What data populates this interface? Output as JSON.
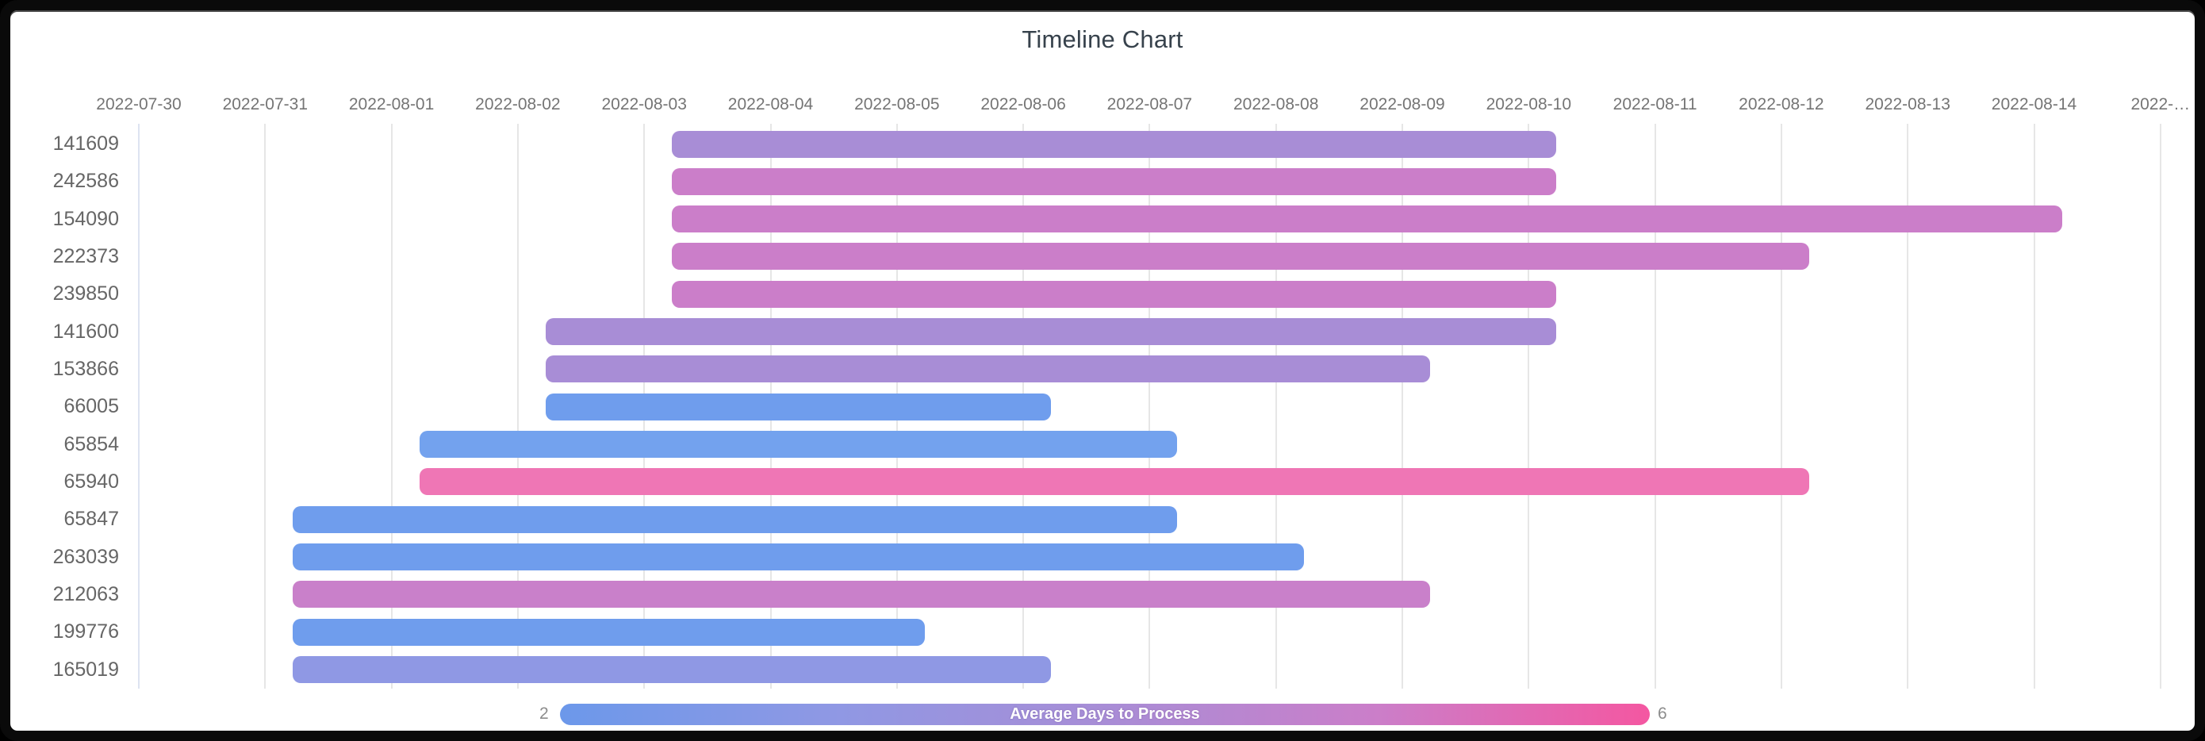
{
  "page": {
    "frame_color": "#0a0a0a",
    "panel_background": "#ffffff"
  },
  "chart": {
    "title": "Timeline Chart",
    "legend": {
      "label": "Average Days to Process",
      "min_label": "2",
      "max_label": "6",
      "gradient": [
        "#6c98ea",
        "#8f98e4",
        "#a88dd6",
        "#cb7ec9",
        "#f457a1"
      ]
    }
  },
  "chart_data": {
    "type": "bar",
    "variant": "timeline-gantt",
    "title": "Timeline Chart",
    "orientation": "horizontal",
    "x_axis": {
      "kind": "date",
      "range_start": "2022-07-30",
      "range_end": "2022-08-15",
      "tick_labels": [
        "2022-07-30",
        "2022-07-31",
        "2022-08-01",
        "2022-08-02",
        "2022-08-03",
        "2022-08-04",
        "2022-08-05",
        "2022-08-06",
        "2022-08-07",
        "2022-08-08",
        "2022-08-09",
        "2022-08-10",
        "2022-08-11",
        "2022-08-12",
        "2022-08-13",
        "2022-08-14",
        "2022-…"
      ],
      "grid": true
    },
    "rows": [
      {
        "label": "141609",
        "start": "2022-08-03",
        "end": "2022-08-10",
        "duration_days": 7,
        "color": "#a88dd6",
        "avg_days_to_process_approx": 4
      },
      {
        "label": "242586",
        "start": "2022-08-03",
        "end": "2022-08-10",
        "duration_days": 7,
        "color": "#cb7ec9",
        "avg_days_to_process_approx": 5
      },
      {
        "label": "154090",
        "start": "2022-08-03",
        "end": "2022-08-14",
        "duration_days": 11,
        "color": "#cb7ec9",
        "avg_days_to_process_approx": 5
      },
      {
        "label": "222373",
        "start": "2022-08-03",
        "end": "2022-08-12",
        "duration_days": 9,
        "color": "#cb7ec9",
        "avg_days_to_process_approx": 5
      },
      {
        "label": "239850",
        "start": "2022-08-03",
        "end": "2022-08-10",
        "duration_days": 7,
        "color": "#cb7ec9",
        "avg_days_to_process_approx": 5
      },
      {
        "label": "141600",
        "start": "2022-08-02",
        "end": "2022-08-10",
        "duration_days": 8,
        "color": "#a88dd6",
        "avg_days_to_process_approx": 4
      },
      {
        "label": "153866",
        "start": "2022-08-02",
        "end": "2022-08-09",
        "duration_days": 7,
        "color": "#a88dd6",
        "avg_days_to_process_approx": 4
      },
      {
        "label": "66005",
        "start": "2022-08-02",
        "end": "2022-08-06",
        "duration_days": 4,
        "color": "#6f9ded",
        "avg_days_to_process_approx": 2
      },
      {
        "label": "65854",
        "start": "2022-08-01",
        "end": "2022-08-07",
        "duration_days": 6,
        "color": "#73a2ee",
        "avg_days_to_process_approx": 2
      },
      {
        "label": "65940",
        "start": "2022-08-01",
        "end": "2022-08-12",
        "duration_days": 11,
        "color": "#ef76b5",
        "avg_days_to_process_approx": 6
      },
      {
        "label": "65847",
        "start": "2022-07-31",
        "end": "2022-08-07",
        "duration_days": 7,
        "color": "#6f9ded",
        "avg_days_to_process_approx": 2
      },
      {
        "label": "263039",
        "start": "2022-07-31",
        "end": "2022-08-08",
        "duration_days": 8,
        "color": "#6f9ded",
        "avg_days_to_process_approx": 2
      },
      {
        "label": "212063",
        "start": "2022-07-31",
        "end": "2022-08-09",
        "duration_days": 9,
        "color": "#c980ca",
        "avg_days_to_process_approx": 5
      },
      {
        "label": "199776",
        "start": "2022-07-31",
        "end": "2022-08-05",
        "duration_days": 5,
        "color": "#6f9ded",
        "avg_days_to_process_approx": 2
      },
      {
        "label": "165019",
        "start": "2022-07-31",
        "end": "2022-08-06",
        "duration_days": 6,
        "color": "#8f98e4",
        "avg_days_to_process_approx": 2.5
      }
    ],
    "color_scale": {
      "label": "Average Days to Process",
      "min": 2,
      "max": 6,
      "min_color": "#6c98ea",
      "max_color": "#f457a1",
      "legend_position": "bottom"
    },
    "layout": {
      "grid": true,
      "bar_day_fraction_offset": 0.22
    }
  }
}
